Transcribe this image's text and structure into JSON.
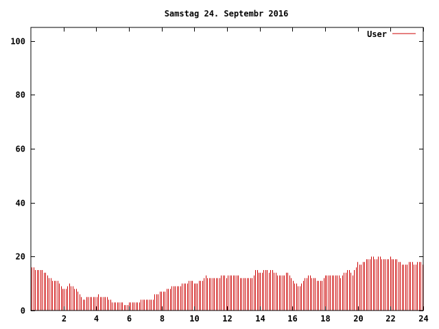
{
  "chart_data": {
    "type": "bar",
    "title": "Samstag 24. Septembr 2016",
    "xlabel": "",
    "ylabel": "",
    "xlim": [
      0,
      24
    ],
    "ylim": [
      0,
      105
    ],
    "xticks": [
      2,
      4,
      6,
      8,
      10,
      12,
      14,
      16,
      18,
      20,
      22,
      24
    ],
    "yticks": [
      0,
      20,
      40,
      60,
      80,
      100
    ],
    "grid": false,
    "legend": "top-right",
    "series": [
      {
        "name": "User",
        "color": "#cc0000",
        "values": [
          16,
          16,
          15,
          15,
          15,
          15,
          15,
          14,
          14,
          13,
          12,
          12,
          11,
          11,
          11,
          11,
          10,
          9,
          8,
          8,
          8,
          9,
          10,
          9,
          9,
          8,
          8,
          7,
          6,
          5,
          4,
          4,
          5,
          5,
          5,
          5,
          5,
          5,
          5,
          6,
          5,
          5,
          5,
          5,
          5,
          4,
          4,
          3,
          3,
          3,
          3,
          3,
          3,
          3,
          2,
          2,
          2,
          3,
          3,
          3,
          3,
          3,
          3,
          3,
          4,
          4,
          4,
          4,
          4,
          4,
          4,
          4,
          6,
          6,
          6,
          7,
          7,
          7,
          7,
          8,
          8,
          8,
          9,
          9,
          9,
          9,
          9,
          9,
          10,
          10,
          10,
          10,
          11,
          11,
          11,
          10,
          10,
          10,
          11,
          11,
          11,
          12,
          13,
          12,
          12,
          12,
          12,
          12,
          12,
          12,
          12,
          13,
          13,
          13,
          12,
          13,
          13,
          13,
          13,
          13,
          13,
          13,
          12,
          12,
          12,
          12,
          12,
          12,
          12,
          12,
          13,
          15,
          15,
          14,
          14,
          14,
          15,
          15,
          15,
          14,
          15,
          15,
          14,
          14,
          13,
          13,
          13,
          13,
          13,
          14,
          14,
          13,
          12,
          11,
          10,
          10,
          9,
          9,
          10,
          11,
          12,
          12,
          13,
          13,
          12,
          12,
          12,
          11,
          11,
          11,
          11,
          12,
          13,
          13,
          13,
          13,
          13,
          13,
          13,
          13,
          13,
          12,
          13,
          14,
          14,
          15,
          15,
          14,
          13,
          15,
          16,
          18,
          17,
          17,
          18,
          18,
          19,
          19,
          19,
          20,
          20,
          19,
          19,
          20,
          20,
          19,
          19,
          19,
          19,
          19,
          20,
          19,
          19,
          19,
          19,
          18,
          18,
          17,
          17,
          17,
          17,
          18,
          18,
          18,
          17,
          17,
          18,
          18,
          18,
          17
        ]
      }
    ]
  }
}
